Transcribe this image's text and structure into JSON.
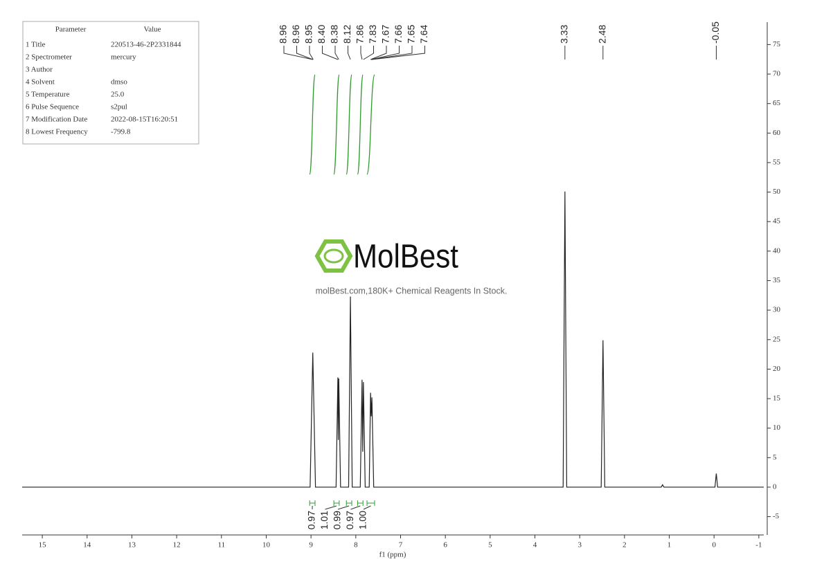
{
  "parameters": {
    "header": [
      "Parameter",
      "Value"
    ],
    "rows": [
      [
        "1 Title",
        "220513-46-2P2331844"
      ],
      [
        "2 Spectrometer",
        "mercury"
      ],
      [
        "3 Author"
      ],
      [
        "4 Solvent",
        "dmso"
      ],
      [
        "5 Temperature",
        "25.0"
      ],
      [
        "6 Pulse Sequence",
        "s2pul"
      ],
      [
        "7 Modification Date",
        "2022-08-15T16:20:51"
      ],
      [
        "8 Lowest Frequency",
        "-799.8"
      ]
    ]
  },
  "watermark": {
    "logo": "MolBest",
    "text": "molBest.com,180K+ Chemical Reagents In Stock."
  },
  "chart_data": {
    "type": "line",
    "x_label": "f1 (ppm)",
    "color": "#222222",
    "x": [
      15.45,
      9.02,
      8.96,
      8.9,
      8.44,
      8.4,
      8.39,
      8.38,
      8.34,
      8.16,
      8.12,
      8.08,
      7.9,
      7.86,
      7.845,
      7.83,
      7.79,
      7.7,
      7.67,
      7.655,
      7.64,
      7.6,
      3.37,
      3.33,
      3.29,
      2.52,
      2.48,
      2.44,
      1.18,
      1.15,
      1.12,
      -0.02,
      -0.05,
      -0.08,
      -1.11
    ],
    "values": [
      0,
      0,
      22.8,
      0,
      0,
      18.6,
      8,
      18.4,
      0,
      0,
      32.3,
      0,
      0,
      18.2,
      6,
      17.8,
      0,
      0,
      16.0,
      12,
      15.2,
      0,
      0,
      50.1,
      0,
      0,
      24.9,
      0,
      0,
      0.4,
      0,
      0,
      2.3,
      0,
      0
    ],
    "xlim": [
      15.45,
      -1.11
    ],
    "xticks": [
      15,
      14,
      13,
      12,
      11,
      10,
      9,
      8,
      7,
      6,
      5,
      4,
      3,
      2,
      1,
      0,
      -1
    ],
    "ylim": [
      -8.1,
      78.8
    ],
    "yticks": [
      -5,
      0,
      5,
      10,
      15,
      20,
      25,
      30,
      35,
      40,
      45,
      50,
      55,
      60,
      65,
      70,
      75
    ],
    "peak_labels": [
      {
        "value": 8.96,
        "label": "8.96"
      },
      {
        "value": 8.96,
        "label": "8.96"
      },
      {
        "value": 8.95,
        "label": "8.95"
      },
      {
        "value": 8.4,
        "label": "8.40"
      },
      {
        "value": 8.38,
        "label": "8.38"
      },
      {
        "value": 8.12,
        "label": "8.12"
      },
      {
        "value": 7.86,
        "label": "7.86"
      },
      {
        "value": 7.83,
        "label": "7.83"
      },
      {
        "value": 7.67,
        "label": "7.67"
      },
      {
        "value": 7.66,
        "label": "7.66"
      },
      {
        "value": 7.65,
        "label": "7.65"
      },
      {
        "value": 7.64,
        "label": "7.64"
      },
      {
        "value": 3.33,
        "label": "3.33"
      },
      {
        "value": 2.48,
        "label": "2.48"
      },
      {
        "value": -0.05,
        "label": "-0.05"
      }
    ],
    "integral_color": "#2e9a2e",
    "integrals": {
      "from": [
        9.03,
        8.49,
        8.21,
        7.96,
        7.75
      ],
      "to": [
        8.91,
        8.37,
        8.09,
        7.84,
        7.58
      ],
      "values": [
        0.97,
        1.01,
        0.99,
        0.97,
        1.0
      ],
      "value_labels": [
        "0.97",
        "1.01",
        "0.99",
        "0.97",
        "1.00"
      ]
    }
  }
}
